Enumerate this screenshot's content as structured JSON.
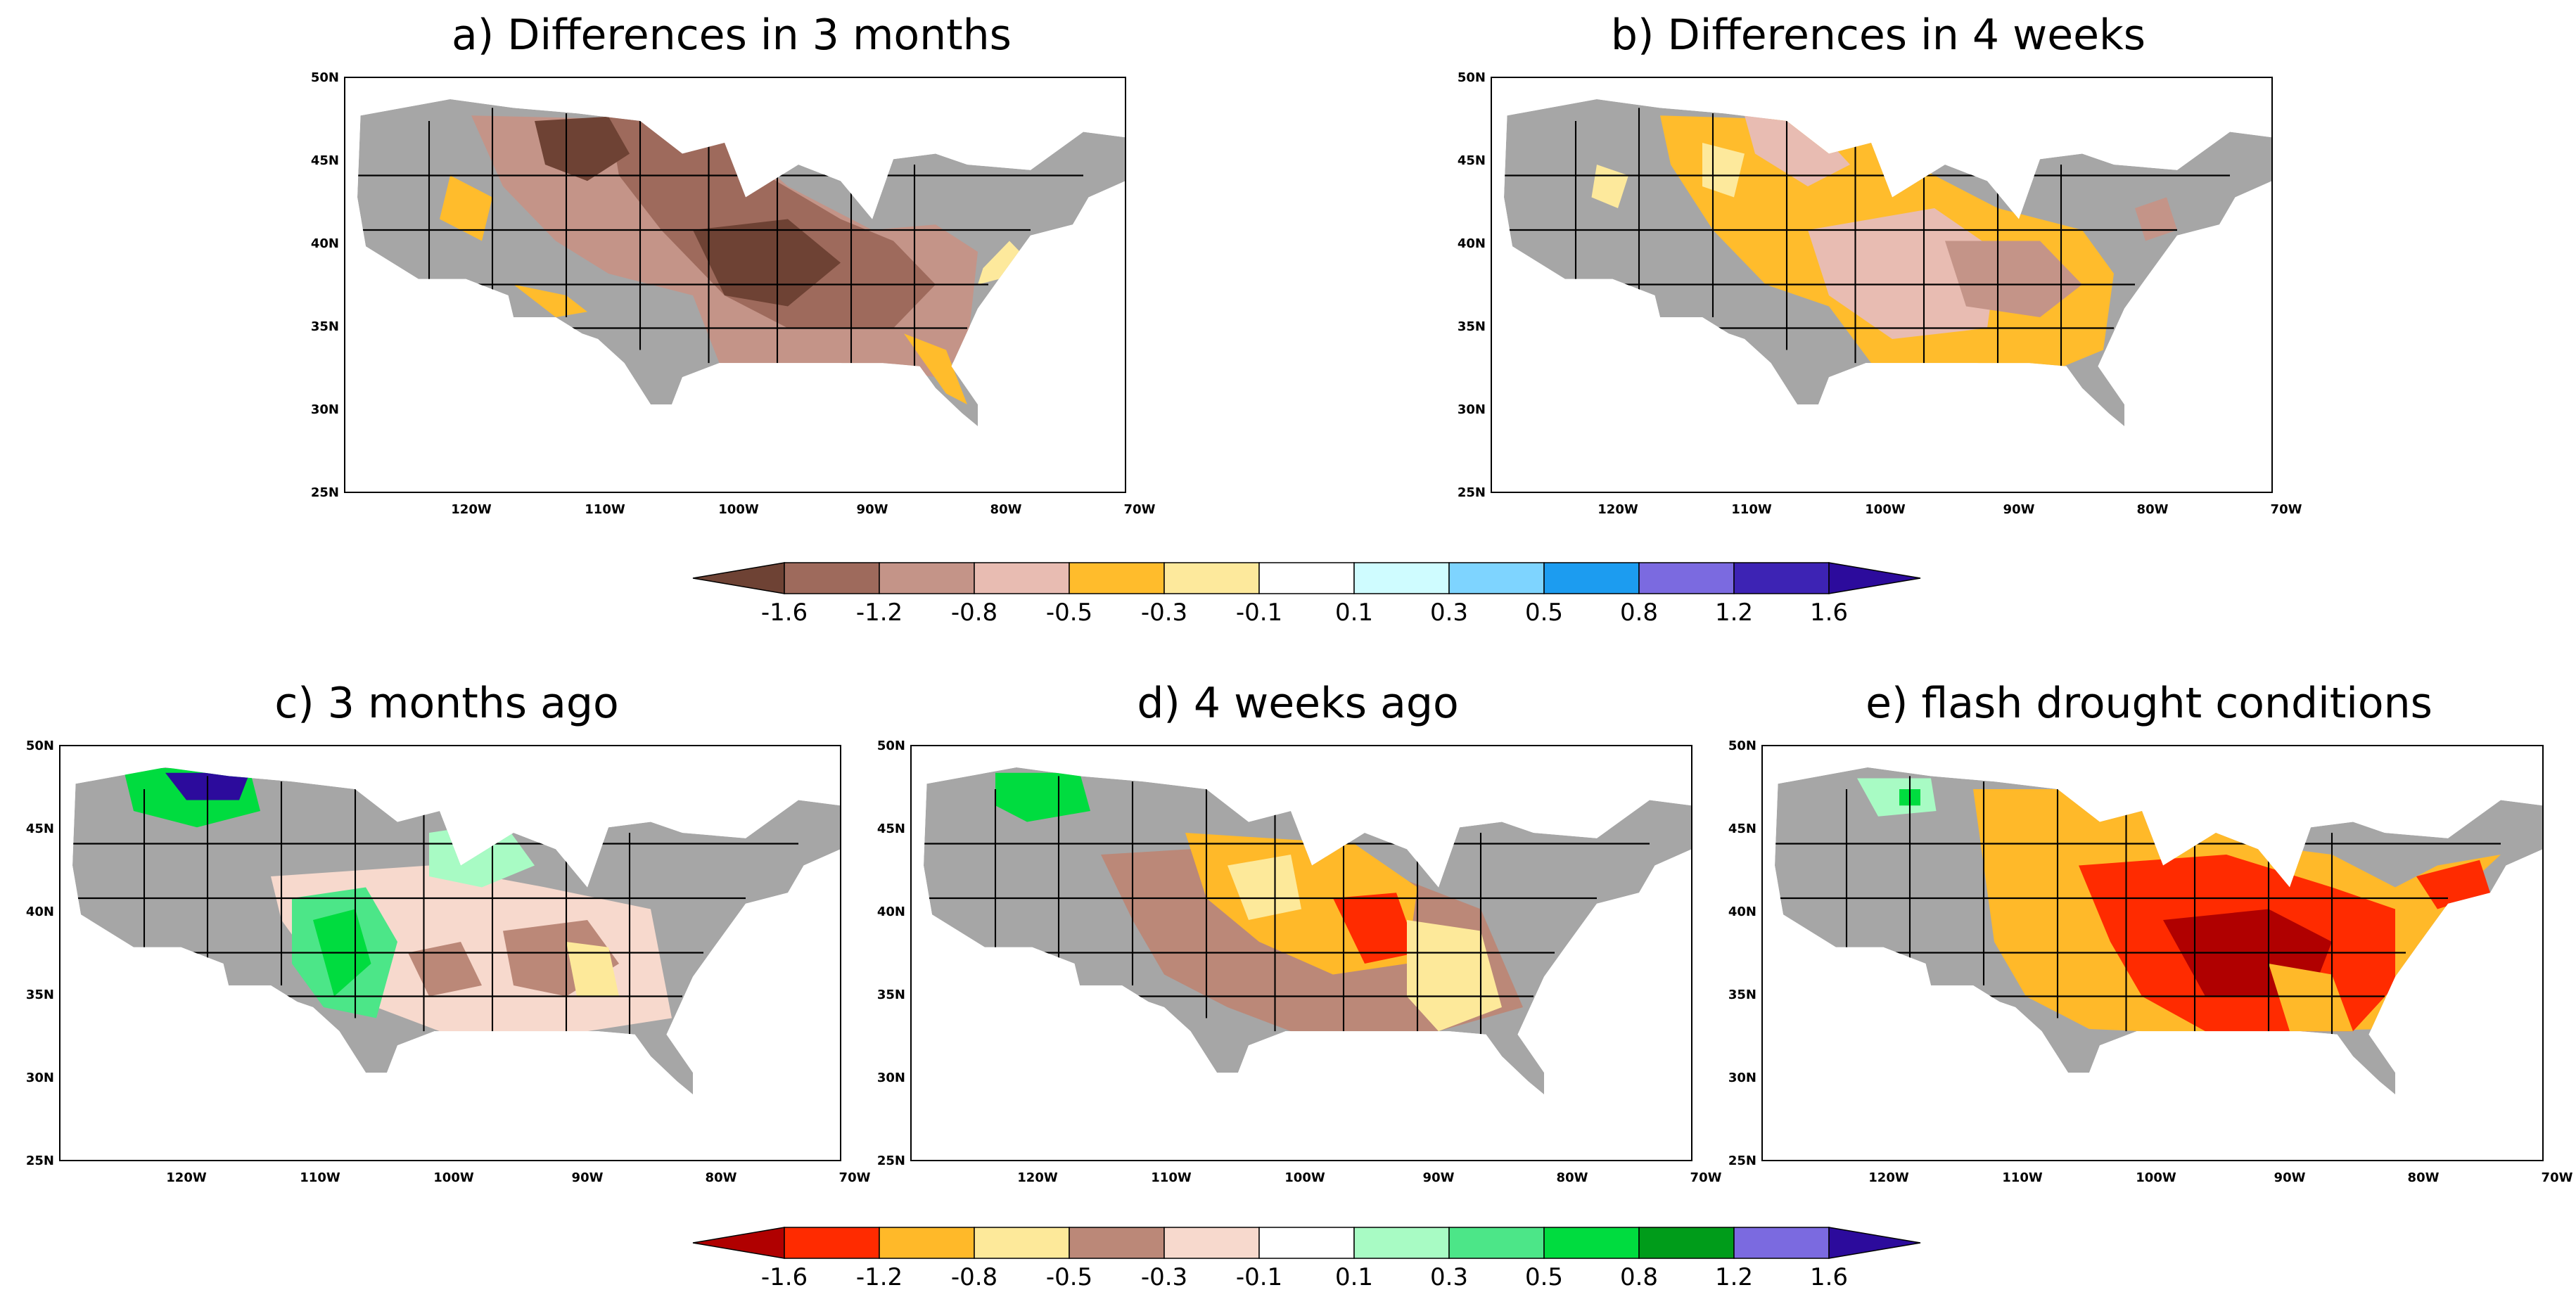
{
  "figure": {
    "panels": [
      {
        "key": "a",
        "title": "a) Differences in 3 months",
        "scheme": "diff3m"
      },
      {
        "key": "b",
        "title": "b) Differences in 4 weeks",
        "scheme": "diff4w"
      },
      {
        "key": "c",
        "title": "c) 3 months ago",
        "scheme": "ago3m"
      },
      {
        "key": "d",
        "title": "d) 4 weeks ago",
        "scheme": "ago4w"
      },
      {
        "key": "e",
        "title": "e) flash drought conditions",
        "scheme": "flash"
      }
    ],
    "lat_ticks": [
      "50N",
      "45N",
      "40N",
      "35N",
      "30N",
      "25N"
    ],
    "lon_ticks": [
      "120W",
      "110W",
      "100W",
      "90W",
      "80W",
      "70W"
    ],
    "colorbar_top": {
      "labels": [
        "-1.6",
        "-1.2",
        "-0.8",
        "-0.5",
        "-0.3",
        "-0.1",
        "0.1",
        "0.3",
        "0.5",
        "0.8",
        "1.2",
        "1.6"
      ],
      "colors": [
        "#6e4234",
        "#9e6a5c",
        "#c49488",
        "#e8bcb2",
        "#ffbc2c",
        "#fde99c",
        "#ffffff",
        "#cffcff",
        "#7ed4ff",
        "#1c9cf0",
        "#7b6ae0",
        "#3d23b4",
        "#2c0b9c"
      ]
    },
    "colorbar_bottom": {
      "labels": [
        "-1.6",
        "-1.2",
        "-0.8",
        "-0.5",
        "-0.3",
        "-0.1",
        "0.1",
        "0.3",
        "0.5",
        "0.8",
        "1.2",
        "1.6"
      ],
      "colors": [
        "#b00000",
        "#ff2b00",
        "#ffb929",
        "#fde99a",
        "#bb8878",
        "#f7d9cd",
        "#ffffff",
        "#a8fbc4",
        "#4ce688",
        "#00dc3f",
        "#009c1a",
        "#7b6ae0",
        "#2c0b9c"
      ]
    },
    "colors": {
      "land_missing": "#a6a6a6",
      "border": "#000000"
    }
  }
}
